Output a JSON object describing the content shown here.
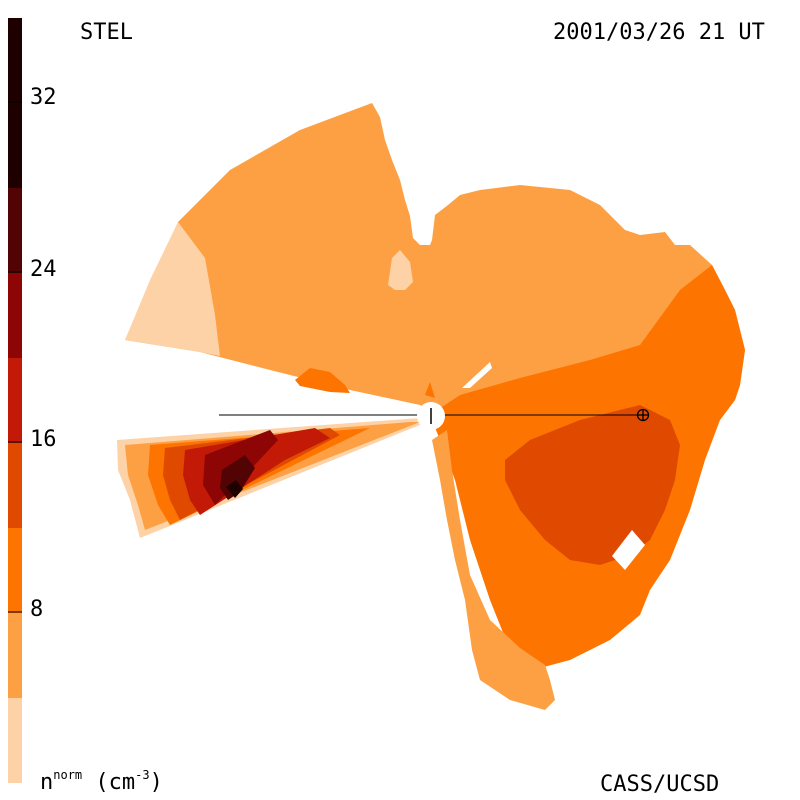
{
  "header": {
    "observatory": "STEL",
    "timestamp": "2001/03/26 21 UT"
  },
  "footer": {
    "credit": "CASS/UCSD",
    "unit_base": "n",
    "unit_sup": "norm",
    "unit_paren": " (cm",
    "unit_exp": "-3",
    "unit_close": ")"
  },
  "colorbar": {
    "tick_labels": [
      "8",
      "16",
      "24",
      "32"
    ],
    "levels": [
      {
        "color": "#fdd2a6"
      },
      {
        "color": "#fda043"
      },
      {
        "color": "#fd7400"
      },
      {
        "color": "#e04a00"
      },
      {
        "color": "#c21a06"
      },
      {
        "color": "#8e0505"
      },
      {
        "color": "#520303"
      },
      {
        "color": "#1e0000"
      }
    ]
  },
  "colors": {
    "palest": "#fdd2a6",
    "light": "#fda043",
    "mid": "#fd7400",
    "dark": "#e04a00",
    "red": "#c21a06",
    "darkred": "#8e0505",
    "maroon": "#520303",
    "black": "#1e0000"
  }
}
